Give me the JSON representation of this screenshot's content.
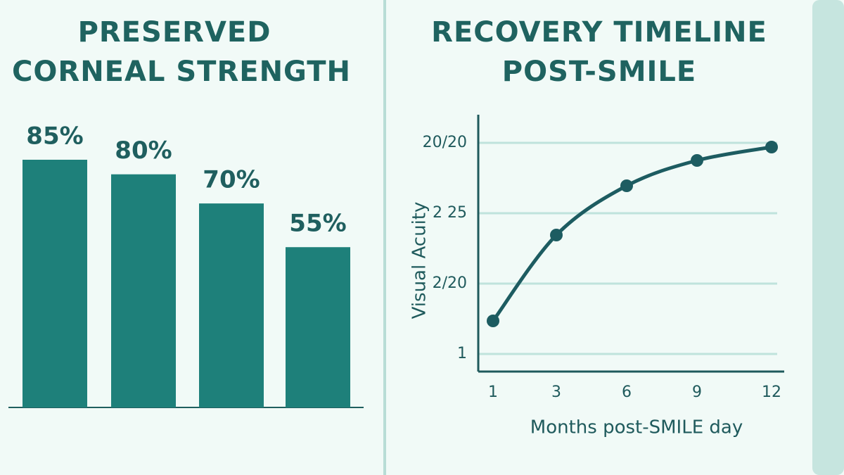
{
  "chart_data": [
    {
      "type": "bar",
      "title": [
        "PRESERVED",
        "CORNEAL STRENGTH"
      ],
      "categories": [
        null,
        null,
        null,
        null
      ],
      "values": [
        85,
        80,
        70,
        55
      ],
      "value_labels": [
        "85%",
        "80%",
        "70%",
        "55%"
      ],
      "color": "#1e807a"
    },
    {
      "type": "line",
      "title": [
        "RECOVERY TIMELINE",
        "POST-SMILE"
      ],
      "categories": [
        "1",
        "3",
        "6",
        "9",
        "12"
      ],
      "series": [
        {
          "name": "Visual Acuity",
          "color": "#1d5c61",
          "values": [
            1.47,
            2.69,
            3.39,
            3.75,
            3.94
          ]
        }
      ],
      "x_label": "Months post-SMILE day",
      "y_label": "Visual Acuity",
      "ylim": [
        0.75,
        4.4
      ],
      "yticks": [
        1,
        {
          "value": 2,
          "label": "2/20"
        },
        {
          "value": 3,
          "label": "2 25"
        },
        {
          "value": 4,
          "label": "20/20"
        }
      ],
      "grid": true
    }
  ]
}
